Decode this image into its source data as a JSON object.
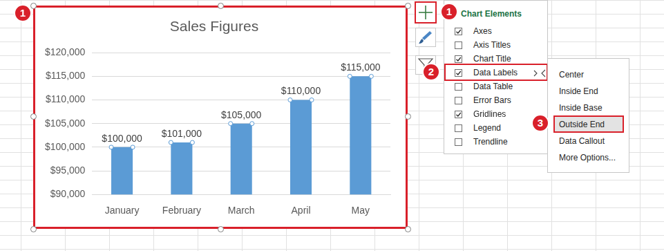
{
  "chart_data": {
    "type": "bar",
    "title": "Sales Figures",
    "categories": [
      "January",
      "February",
      "March",
      "April",
      "May"
    ],
    "values": [
      100000,
      101000,
      105000,
      110000,
      115000
    ],
    "value_labels": [
      "$100,000",
      "$101,000",
      "$105,000",
      "$110,000",
      "$115,000"
    ],
    "color": "#5b9bd5",
    "ylim": [
      90000,
      120000
    ],
    "yticks": [
      {
        "value": 90000,
        "label": "$90,000"
      },
      {
        "value": 95000,
        "label": "$95,000"
      },
      {
        "value": 100000,
        "label": "$100,000"
      },
      {
        "value": 105000,
        "label": "$105,000"
      },
      {
        "value": 110000,
        "label": "$110,000"
      },
      {
        "value": 115000,
        "label": "$115,000"
      },
      {
        "value": 120000,
        "label": "$120,000"
      }
    ],
    "grid": true,
    "data_labels": true
  },
  "callouts": [
    "1",
    "1",
    "2",
    "3"
  ],
  "chart_elements": {
    "title": "Chart Elements",
    "items": [
      {
        "label": "Axes",
        "checked": true
      },
      {
        "label": "Axis Titles",
        "checked": false
      },
      {
        "label": "Chart Title",
        "checked": true
      },
      {
        "label": "Data Labels",
        "checked": true
      },
      {
        "label": "Data Table",
        "checked": false
      },
      {
        "label": "Error Bars",
        "checked": false
      },
      {
        "label": "Gridlines",
        "checked": true
      },
      {
        "label": "Legend",
        "checked": false
      },
      {
        "label": "Trendline",
        "checked": false
      }
    ],
    "highlighted": "Data Labels"
  },
  "data_labels_menu": {
    "items": [
      "Center",
      "Inside End",
      "Inside Base",
      "Outside End",
      "Data Callout",
      "More Options..."
    ],
    "selected": "Outside End"
  }
}
